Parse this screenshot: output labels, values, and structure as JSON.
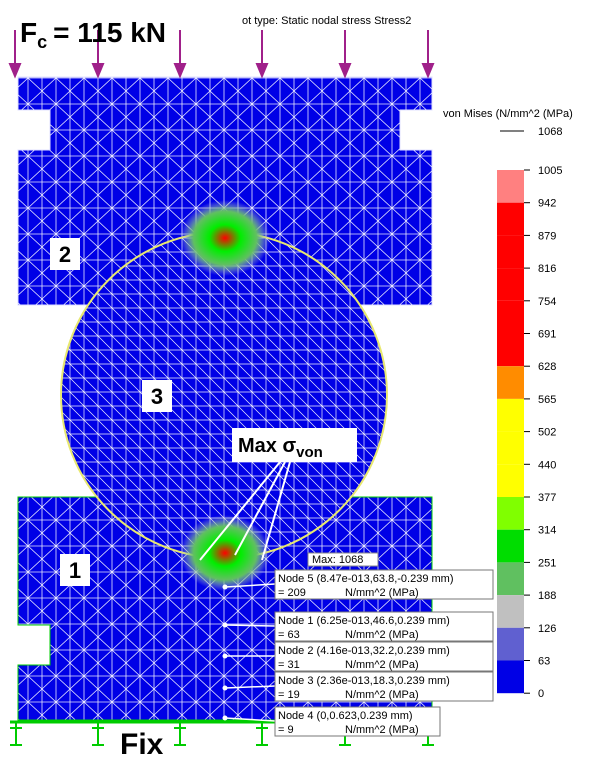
{
  "force": {
    "symbol": "F",
    "subscript": "c",
    "value": "= 115 kN"
  },
  "plot_type": "ot type: Static nodal stress Stress2",
  "legend": {
    "title": "von Mises (N/mm^2 (MPa)",
    "max": "1068",
    "levels": [
      "1005",
      "942",
      "879",
      "816",
      "754",
      "691",
      "628",
      "565",
      "502",
      "440",
      "377",
      "314",
      "251",
      "188",
      "126",
      "63",
      "0"
    ]
  },
  "parts": {
    "top": "2",
    "ball": "3",
    "bottom": "1"
  },
  "annotation": {
    "text": "Max σ",
    "subscript": "von"
  },
  "max_label": "Max: 1068",
  "nodes": [
    {
      "label": "Node 5 (8.47e-013,63.8,-0.239 mm)",
      "value": "= 209",
      "unit": "N/mm^2 (MPa)"
    },
    {
      "label": "Node 1 (6.25e-013,46.6,0.239 mm)",
      "value": "= 63",
      "unit": "N/mm^2 (MPa)"
    },
    {
      "label": "Node 2 (4.16e-013,32.2,0.239 mm)",
      "value": "= 31",
      "unit": "N/mm^2 (MPa)"
    },
    {
      "label": "Node 3 (2.36e-013,18.3,0.239 mm)",
      "value": "= 19",
      "unit": "N/mm^2 (MPa)"
    },
    {
      "label": "Node 4 (0,0.623,0.239 mm)",
      "value": "= 9",
      "unit": "N/mm^2 (MPa)"
    }
  ],
  "support": "Fix"
}
